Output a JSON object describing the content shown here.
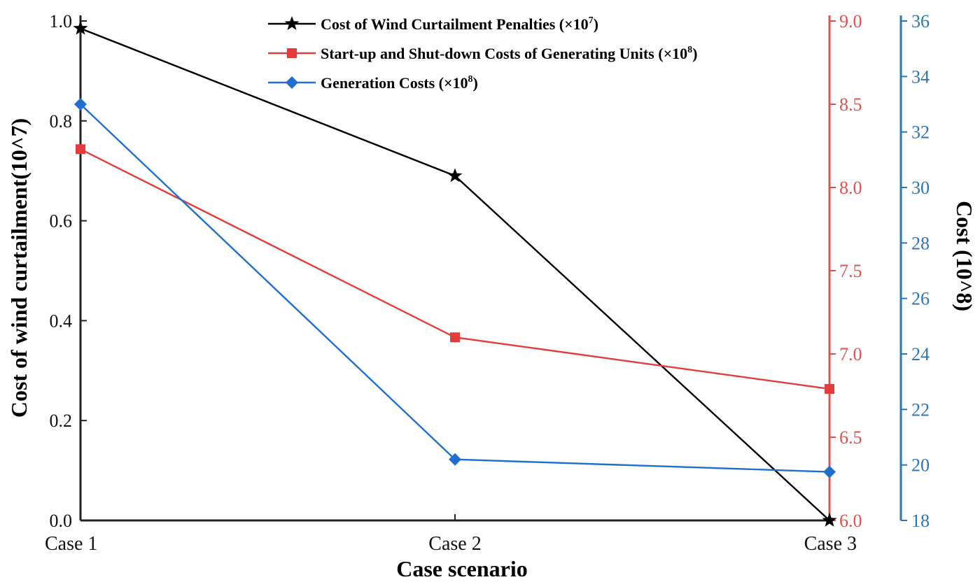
{
  "chart_data": {
    "type": "line",
    "categories": [
      "Case 1",
      "Case 2",
      "Case 3"
    ],
    "xlabel": "Case scenario",
    "axes": {
      "left": {
        "label": "Cost of wind curtailment(10^7)",
        "ylim": [
          0.0,
          1.0
        ],
        "ticks": [
          "0.0",
          "0.2",
          "0.4",
          "0.6",
          "0.8",
          "1.0"
        ],
        "color": "#000000"
      },
      "right1": {
        "ylim": [
          6.0,
          9.0
        ],
        "ticks": [
          "6.0",
          "6.5",
          "7.0",
          "7.5",
          "8.0",
          "8.5",
          "9.0"
        ],
        "color": "#d9534f"
      },
      "right2": {
        "label": "Cost (10^8)",
        "ylim": [
          18,
          36
        ],
        "ticks": [
          "18",
          "20",
          "22",
          "24",
          "26",
          "28",
          "30",
          "32",
          "34",
          "36"
        ],
        "color": "#2e75b6"
      }
    },
    "series": [
      {
        "name": "Cost of Wind Curtailment Penalties (×10",
        "exponent": "7",
        "close": ")",
        "axis": "left",
        "values": [
          0.985,
          0.69,
          0.0
        ],
        "color": "#000000",
        "marker": "star"
      },
      {
        "name": "Start-up and Shut-down Costs of Generating Units (×10",
        "exponent": "8",
        "close": ")",
        "axis": "right1",
        "values": [
          8.23,
          7.1,
          6.79
        ],
        "color": "#e63b3b",
        "marker": "square"
      },
      {
        "name": "Generation Costs (×10",
        "exponent": "8",
        "close": ")",
        "axis": "right2",
        "values": [
          33.0,
          20.2,
          19.75
        ],
        "color": "#1f6fd1",
        "marker": "diamond"
      }
    ],
    "legend_position": "top-center",
    "grid": false
  }
}
